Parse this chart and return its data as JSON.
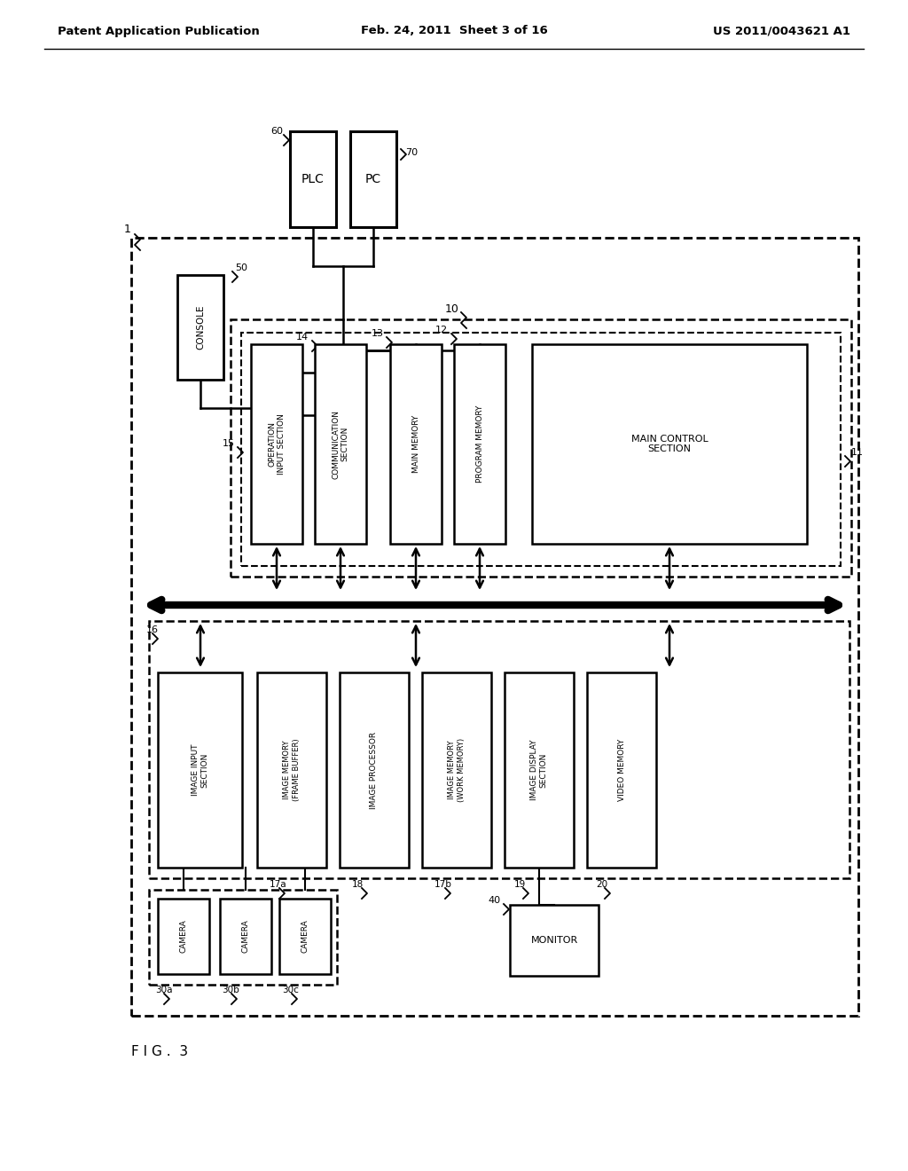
{
  "bg_color": "#ffffff",
  "title_left": "Patent Application Publication",
  "title_center": "Feb. 24, 2011  Sheet 3 of 16",
  "title_right": "US 2011/0043621 A1",
  "fig_label": "F I G .  3"
}
